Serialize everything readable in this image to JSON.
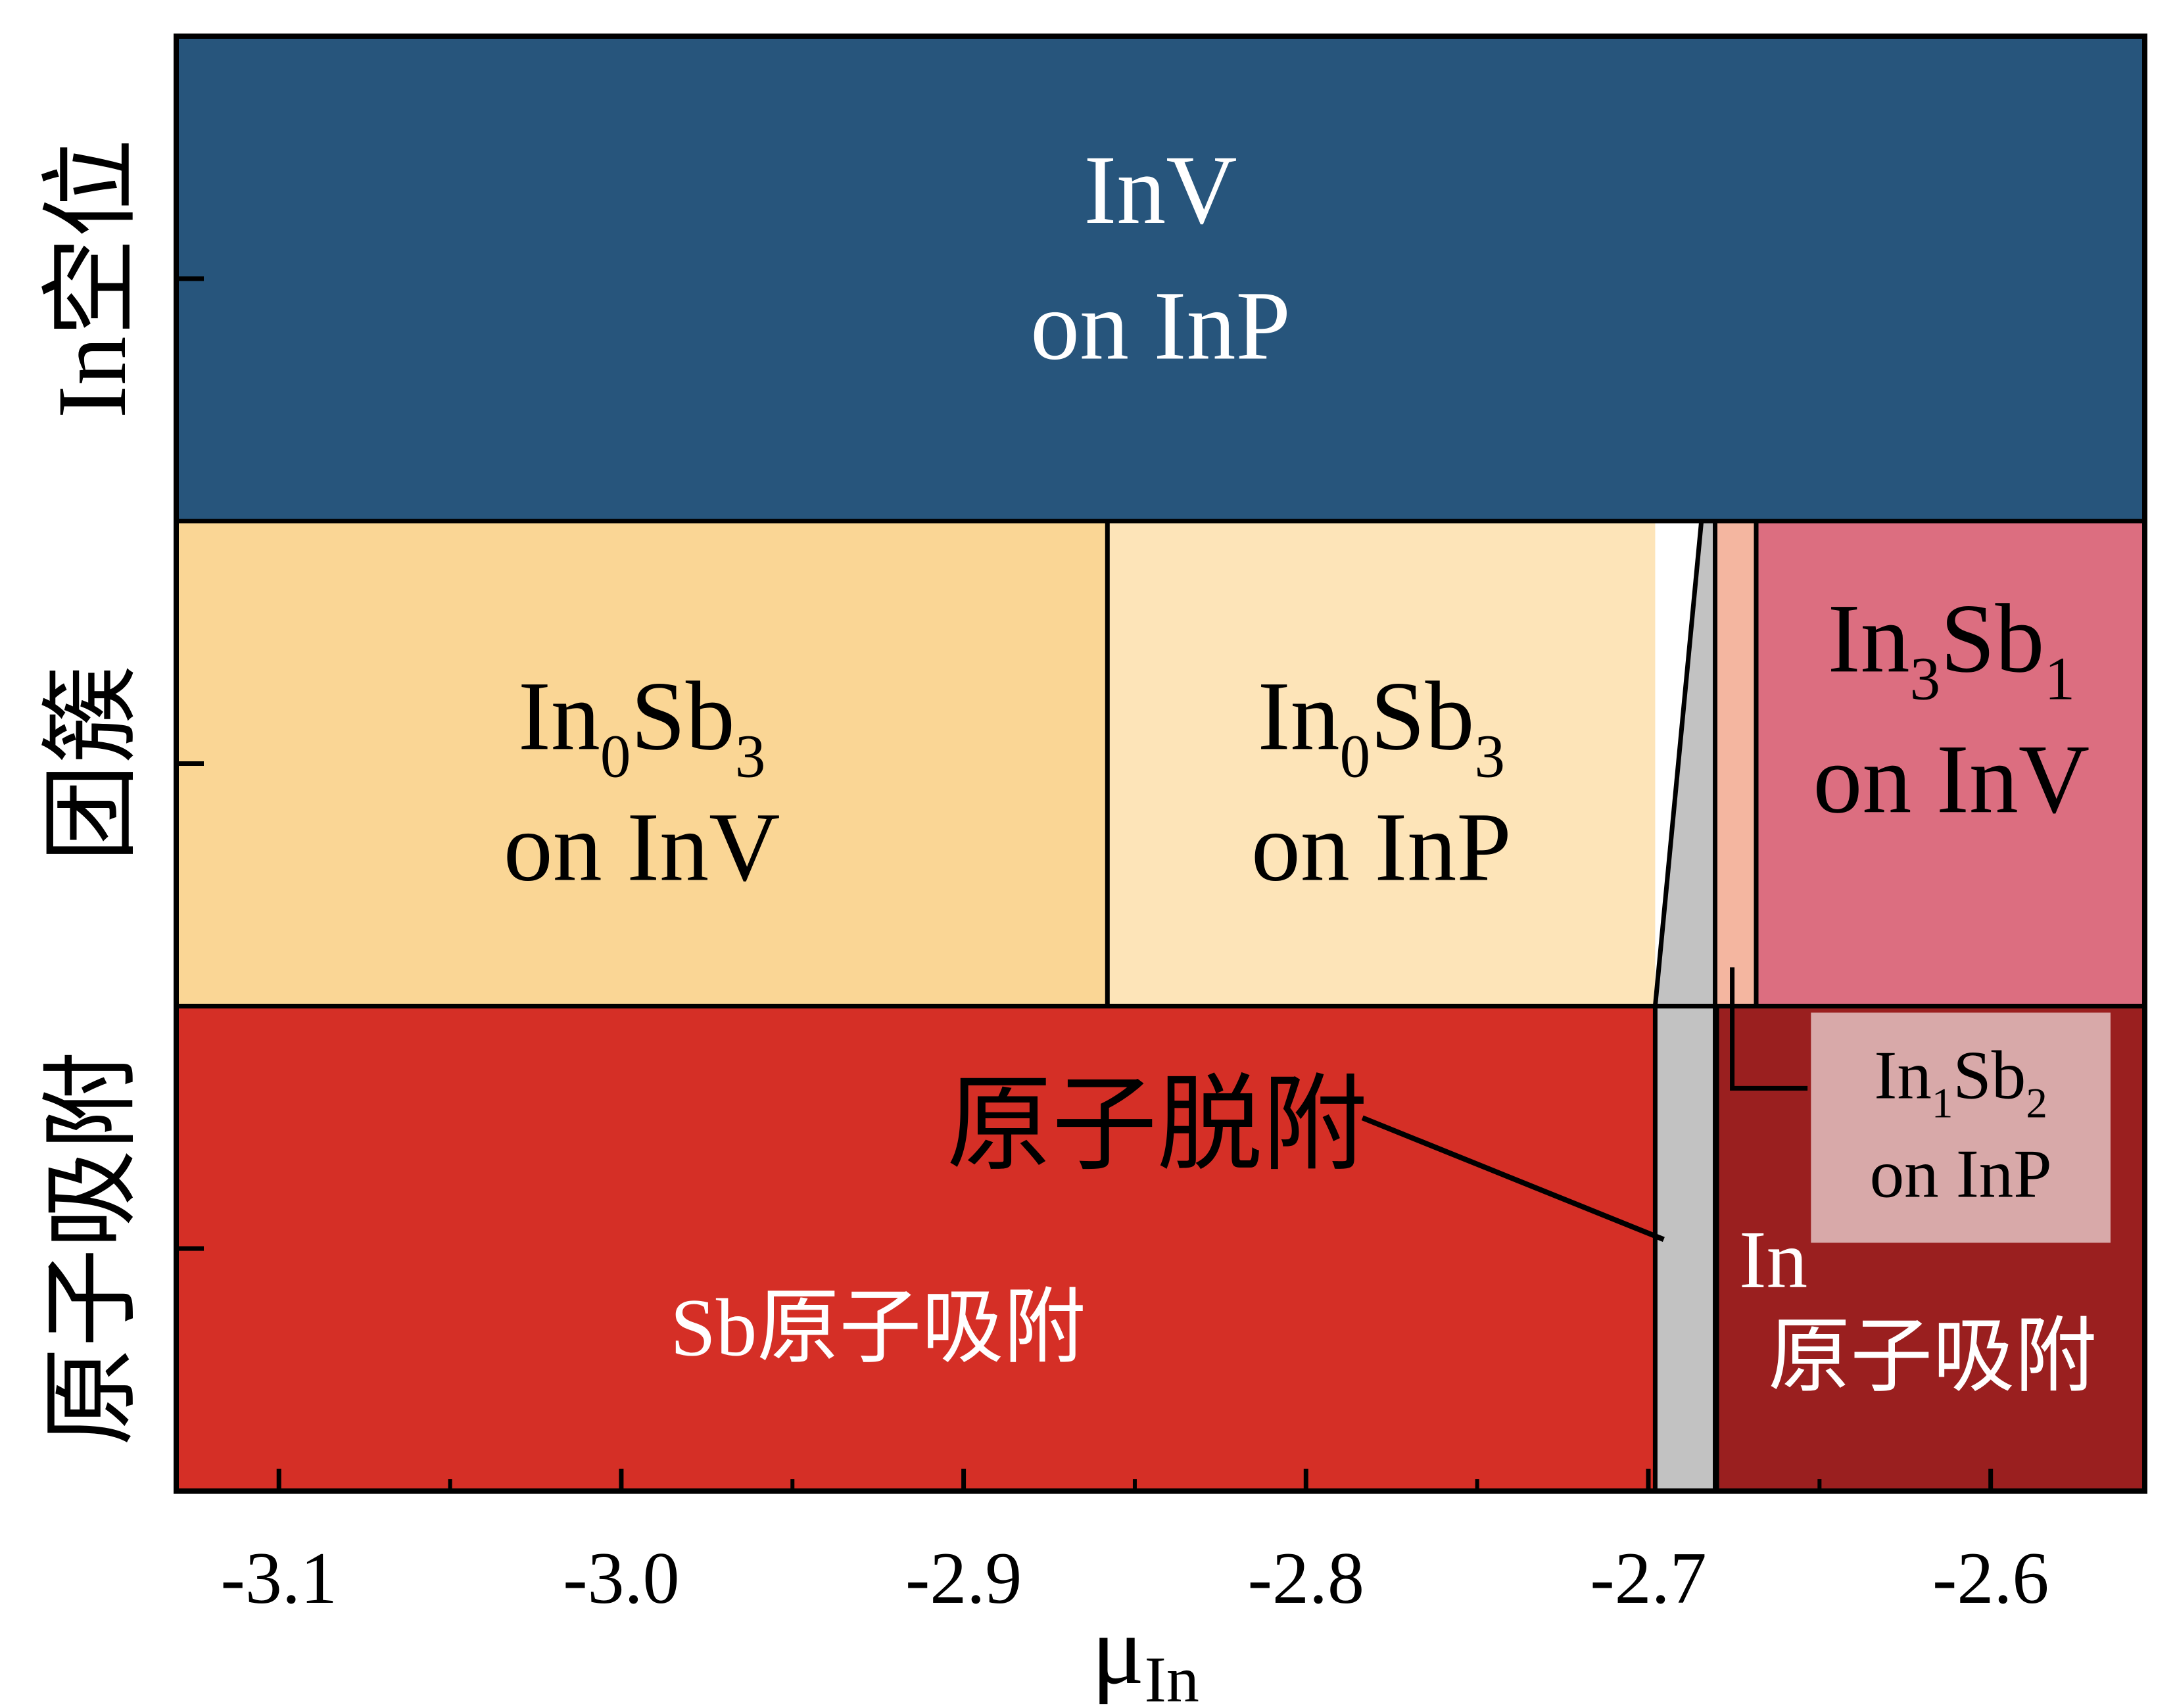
{
  "chart_data": {
    "type": "phase-diagram",
    "xlabel": "μ",
    "xlabel_sub": "In",
    "xlim": [
      -3.13,
      -2.555
    ],
    "xticks": [
      {
        "value": -3.1,
        "label": "-3.1"
      },
      {
        "value": -3.0,
        "label": "-3.0"
      },
      {
        "value": -2.9,
        "label": "-2.9"
      },
      {
        "value": -2.8,
        "label": "-2.8"
      },
      {
        "value": -2.7,
        "label": "-2.7"
      },
      {
        "value": -2.6,
        "label": "-2.6"
      }
    ],
    "xminor": [
      -3.05,
      -2.95,
      -2.85,
      -2.75,
      -2.65
    ],
    "rows": [
      {
        "key": "vacancy",
        "label": "In空位"
      },
      {
        "key": "cluster",
        "label": "团簇"
      },
      {
        "key": "adsorption",
        "label": "原子吸附"
      }
    ],
    "regions": [
      {
        "row": "vacancy",
        "x": [
          -3.13,
          -2.555
        ],
        "color": "#27557c",
        "lines": [
          [
            {
              "t": "InV"
            }
          ],
          [
            {
              "t": "on InP"
            }
          ]
        ],
        "text_color": "#ffffff"
      },
      {
        "row": "cluster",
        "x": [
          -3.13,
          -2.858
        ],
        "color": "#fad695",
        "lines": [
          [
            {
              "t": "In"
            },
            {
              "sub": "0"
            },
            {
              "t": "Sb"
            },
            {
              "sub": "3"
            }
          ],
          [
            {
              "t": "on InV"
            }
          ]
        ],
        "text_color": "#000000"
      },
      {
        "row": "cluster",
        "x": [
          -2.858,
          -2.698
        ],
        "color": "#fde4b8",
        "lines": [
          [
            {
              "t": "In"
            },
            {
              "sub": "0"
            },
            {
              "t": "Sb"
            },
            {
              "sub": "3"
            }
          ],
          [
            {
              "t": "on InP"
            }
          ]
        ],
        "text_color": "#000000"
      },
      {
        "row": "cluster",
        "x": [
          -2.68,
          -2.668
        ],
        "color": "#f4b6a0",
        "lines": []
      },
      {
        "row": "cluster",
        "x": [
          -2.668,
          -2.555
        ],
        "color": "#dc6e80",
        "lines": [
          [
            {
              "t": "In"
            },
            {
              "sub": "3"
            },
            {
              "t": "Sb"
            },
            {
              "sub": "1"
            }
          ],
          [
            {
              "t": "on InV"
            }
          ]
        ],
        "text_color": "#000000"
      },
      {
        "row": "adsorption",
        "x": [
          -3.13,
          -2.698
        ],
        "color": "#d52f26",
        "lines": [
          [
            {
              "t": "Sb原子吸附"
            }
          ]
        ],
        "text_color": "#ffffff"
      },
      {
        "row": "adsorption",
        "x": [
          -2.68,
          -2.555
        ],
        "color": "#9a1f1f",
        "lines": [
          [
            {
              "t": "In"
            }
          ],
          [
            {
              "t": "原子吸附"
            }
          ]
        ],
        "text_color": "#ffffff"
      }
    ],
    "desorption_band": {
      "x": [
        -2.698,
        -2.68
      ],
      "color": "#c2c2c2"
    },
    "annotations": [
      {
        "key": "desorption",
        "text": "原子脱附"
      },
      {
        "key": "in1sb2",
        "lines": [
          [
            {
              "t": "In"
            },
            {
              "sub": "1"
            },
            {
              "t": "Sb"
            },
            {
              "sub": "2"
            }
          ],
          [
            {
              "t": "on InP"
            }
          ]
        ]
      }
    ]
  }
}
